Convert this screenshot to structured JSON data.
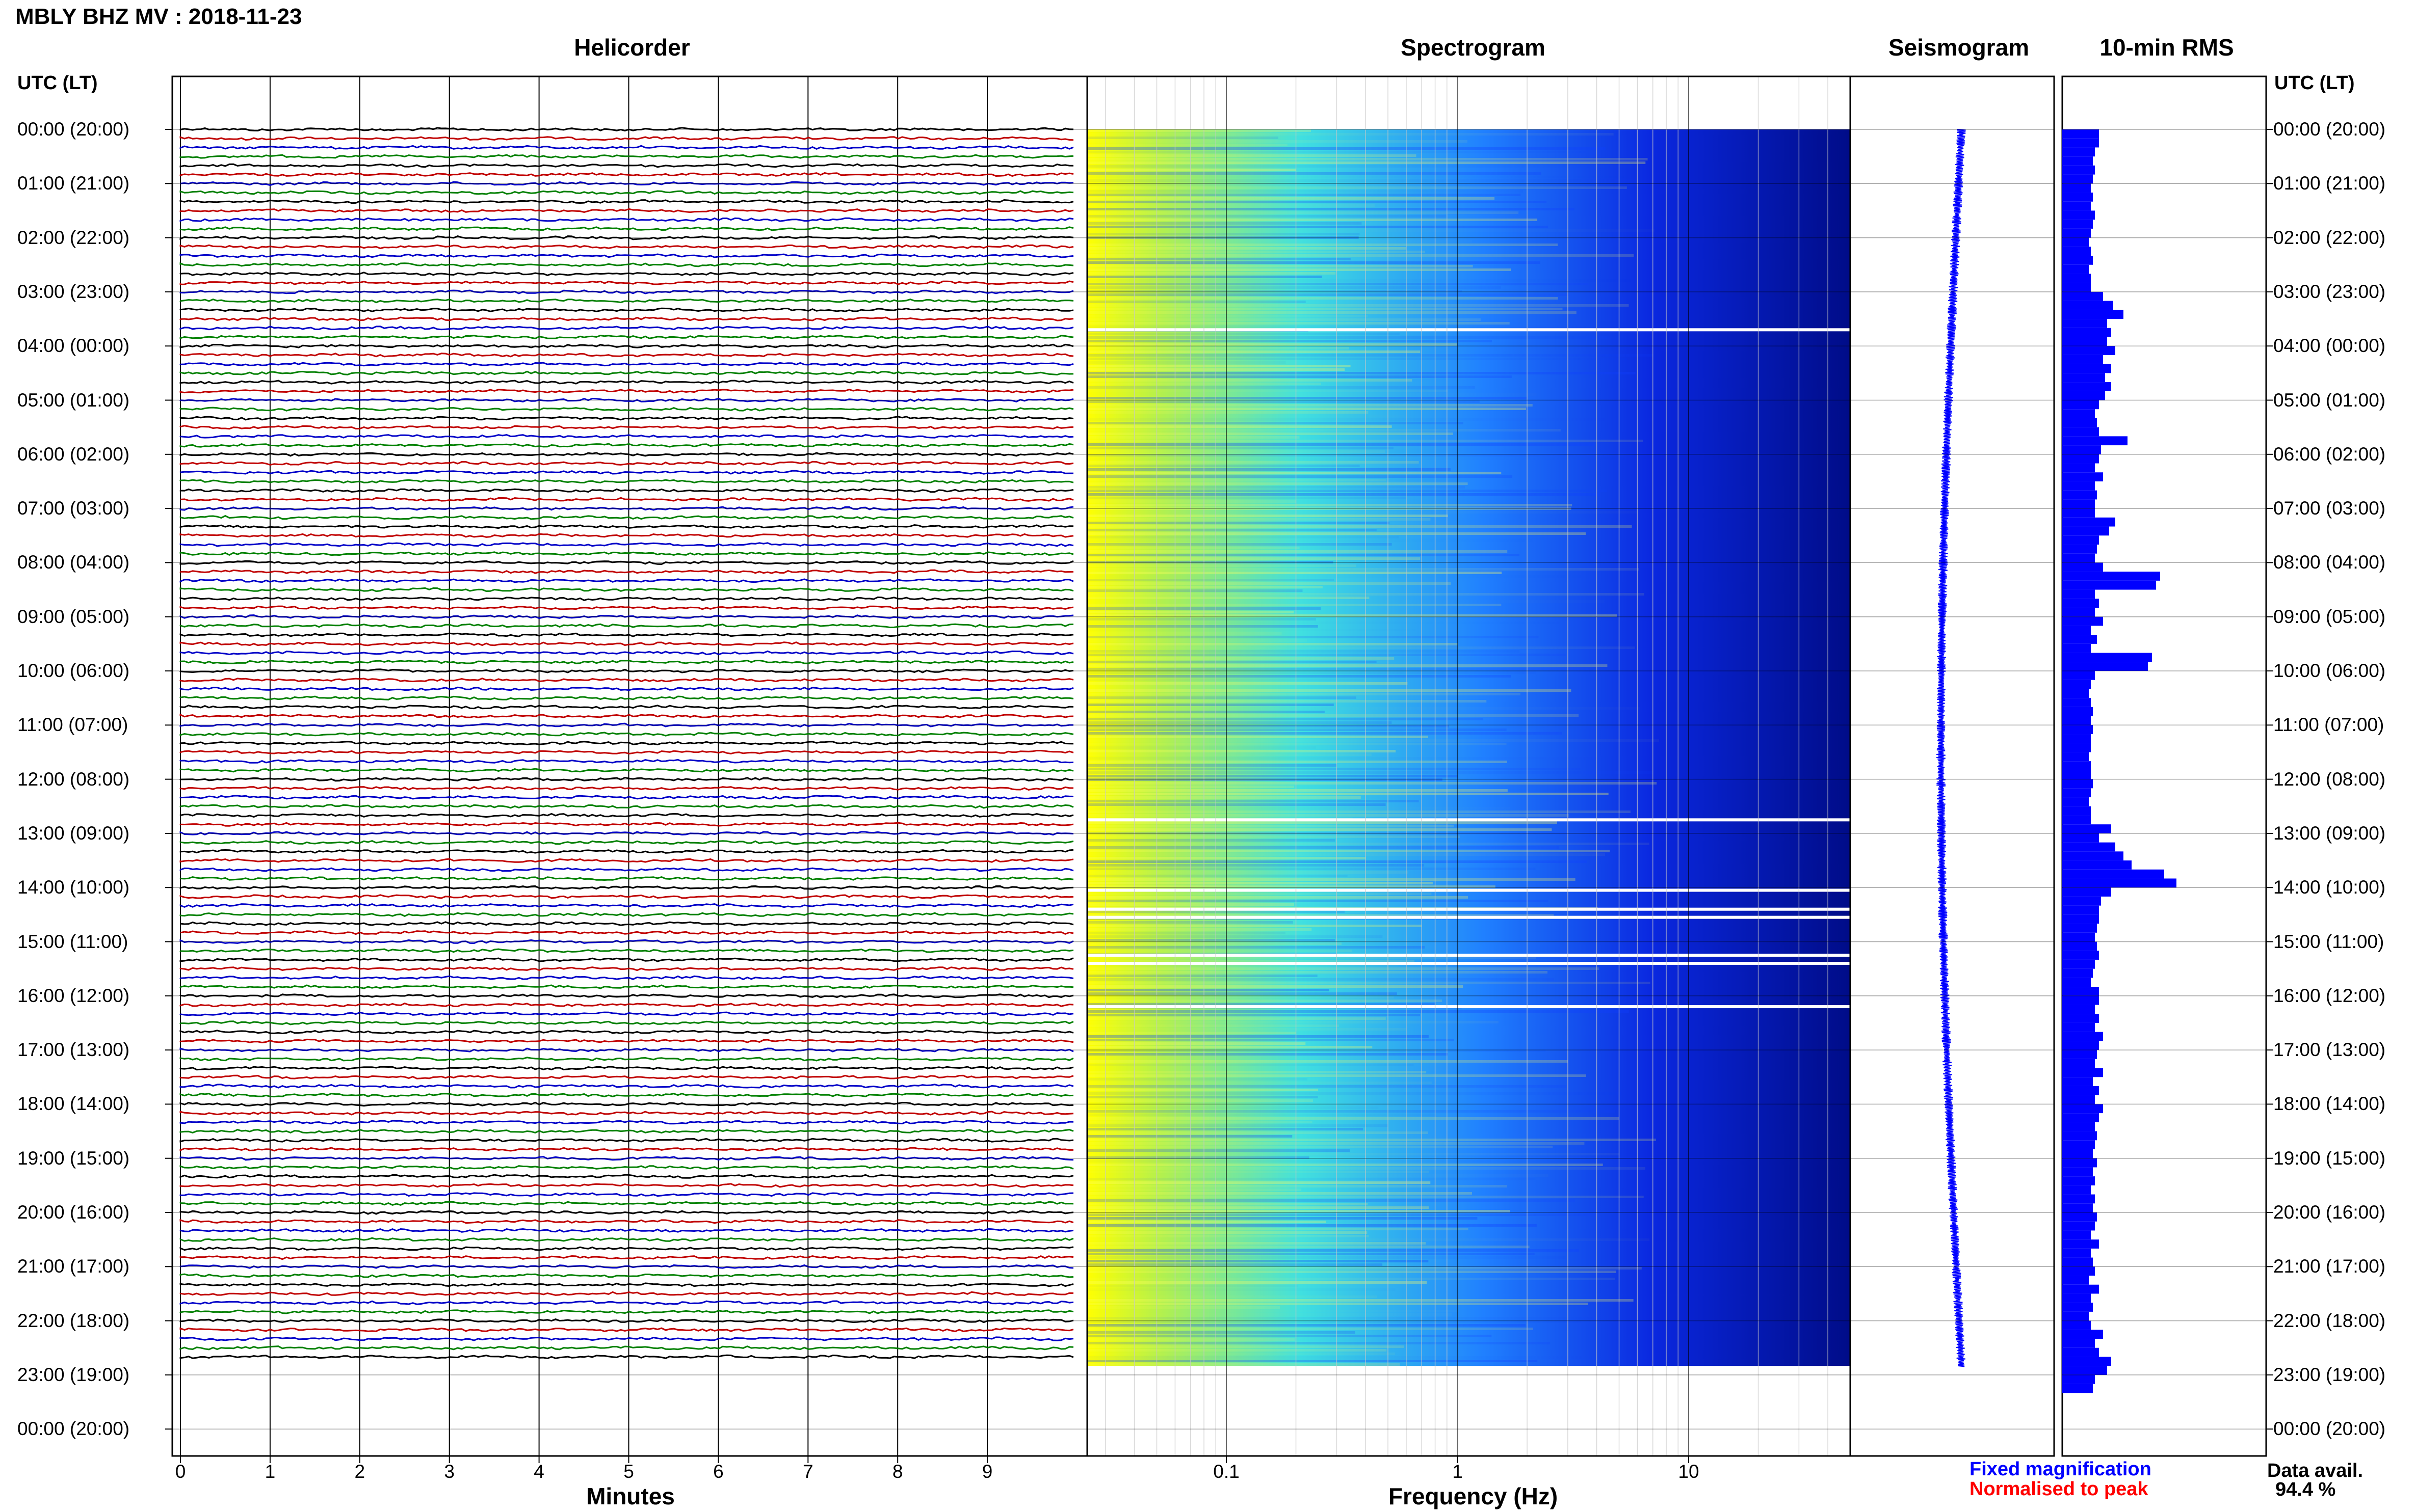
{
  "station_title": "MBLY BHZ MV : 2018-11-23",
  "panels": {
    "helicorder": "Helicorder",
    "spectrogram": "Spectrogram",
    "seismogram": "Seismogram",
    "rms": "10-min RMS"
  },
  "time_axis_header": "UTC (LT)",
  "time_labels": [
    "00:00 (20:00)",
    "01:00 (21:00)",
    "02:00 (22:00)",
    "03:00 (23:00)",
    "04:00 (00:00)",
    "05:00 (01:00)",
    "06:00 (02:00)",
    "07:00 (03:00)",
    "08:00 (04:00)",
    "09:00 (05:00)",
    "10:00 (06:00)",
    "11:00 (07:00)",
    "12:00 (08:00)",
    "13:00 (09:00)",
    "14:00 (10:00)",
    "15:00 (11:00)",
    "16:00 (12:00)",
    "17:00 (13:00)",
    "18:00 (14:00)",
    "19:00 (15:00)",
    "20:00 (16:00)",
    "21:00 (17:00)",
    "22:00 (18:00)",
    "23:00 (19:00)",
    "00:00 (20:00)"
  ],
  "minutes_ticks": [
    "0",
    "1",
    "2",
    "3",
    "4",
    "5",
    "6",
    "7",
    "8",
    "9"
  ],
  "minutes_label": "Minutes",
  "frequency_ticks": [
    "0.1",
    "1",
    "10"
  ],
  "frequency_label": "Frequency (Hz)",
  "legend": {
    "fixed": "Fixed magnification",
    "normalised": "Normalised to peak",
    "fixed_color": "#0000ff",
    "normalised_color": "#ff0000"
  },
  "data_avail_label": "Data avail.",
  "data_avail_value": "94.4 %",
  "chart_data": {
    "type": "heatmap",
    "helicorder_trace_colors": [
      "#000000",
      "#c00000",
      "#0000c8",
      "#008000"
    ],
    "helicorder_rows_per_hour": 6,
    "helicorder_data_end_hour": 22.833,
    "spectrogram_freq_range_hz": [
      0.025,
      50
    ],
    "spectrogram_colormap": [
      "#ffff00",
      "#b0f050",
      "#40e0e0",
      "#2080ff",
      "#0a28e0",
      "#000c88"
    ],
    "spectrogram_gaps_utc_hours": [
      3.7,
      12.75,
      14.05,
      14.4,
      14.55,
      15.25,
      15.4,
      16.2
    ],
    "rms_10min_relative": [
      0.18,
      0.18,
      0.16,
      0.15,
      0.16,
      0.15,
      0.14,
      0.15,
      0.14,
      0.16,
      0.15,
      0.14,
      0.13,
      0.14,
      0.15,
      0.13,
      0.14,
      0.14,
      0.2,
      0.25,
      0.3,
      0.22,
      0.24,
      0.22,
      0.26,
      0.2,
      0.24,
      0.21,
      0.24,
      0.21,
      0.18,
      0.16,
      0.17,
      0.18,
      0.32,
      0.19,
      0.18,
      0.16,
      0.2,
      0.16,
      0.17,
      0.16,
      0.16,
      0.26,
      0.23,
      0.18,
      0.17,
      0.16,
      0.2,
      0.48,
      0.46,
      0.16,
      0.18,
      0.16,
      0.2,
      0.14,
      0.17,
      0.14,
      0.44,
      0.42,
      0.16,
      0.14,
      0.13,
      0.14,
      0.15,
      0.14,
      0.15,
      0.14,
      0.14,
      0.13,
      0.14,
      0.14,
      0.15,
      0.14,
      0.13,
      0.14,
      0.14,
      0.24,
      0.18,
      0.26,
      0.3,
      0.34,
      0.5,
      0.56,
      0.24,
      0.19,
      0.18,
      0.18,
      0.17,
      0.16,
      0.17,
      0.18,
      0.16,
      0.15,
      0.14,
      0.18,
      0.18,
      0.16,
      0.18,
      0.16,
      0.2,
      0.18,
      0.17,
      0.16,
      0.2,
      0.15,
      0.18,
      0.16,
      0.2,
      0.18,
      0.16,
      0.17,
      0.16,
      0.15,
      0.17,
      0.15,
      0.16,
      0.14,
      0.16,
      0.15,
      0.17,
      0.16,
      0.14,
      0.18,
      0.14,
      0.15,
      0.16,
      0.13,
      0.18,
      0.14,
      0.15,
      0.13,
      0.14,
      0.2,
      0.16,
      0.18,
      0.24,
      0.22,
      0.16,
      0.15
    ]
  }
}
